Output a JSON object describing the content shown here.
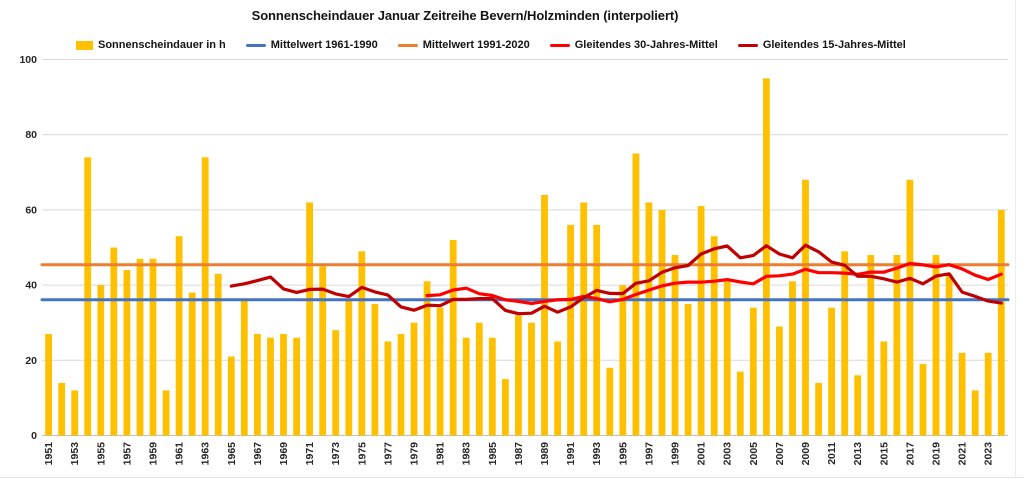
{
  "title": "Sonnenscheindauer Januar Zeitreihe Bevern/Holzminden (interpoliert)",
  "legend": [
    {
      "label": "Sonnenscheindauer in h",
      "color": "#FFC000",
      "swatch": "box"
    },
    {
      "label": "Mittelwert 1961-1990",
      "color": "#4472C4",
      "swatch": "line"
    },
    {
      "label": "Mittelwert 1991-2020",
      "color": "#ED7D31",
      "swatch": "line"
    },
    {
      "label": "Gleitendes 30-Jahres-Mittel",
      "color": "#FF0000",
      "swatch": "line"
    },
    {
      "label": "Gleitendes 15-Jahres-Mittel",
      "color": "#C00000",
      "swatch": "line"
    }
  ],
  "chart_data": {
    "type": "bar",
    "title": "Sonnenscheindauer Januar Zeitreihe Bevern/Holzminden (interpoliert)",
    "xlabel": "",
    "ylabel": "",
    "ylim": [
      0,
      100
    ],
    "yticks": [
      0,
      20,
      40,
      60,
      80,
      100
    ],
    "xticks": [
      1951,
      1953,
      1955,
      1957,
      1959,
      1961,
      1963,
      1965,
      1967,
      1969,
      1971,
      1973,
      1975,
      1977,
      1979,
      1981,
      1983,
      1985,
      1987,
      1989,
      1991,
      1993,
      1995,
      1997,
      1999,
      2001,
      2003,
      2005,
      2007,
      2009,
      2011,
      2013,
      2015,
      2017,
      2019,
      2021,
      2023
    ],
    "grid": true,
    "legend_position": "top",
    "series_label": "Sonnenscheindauer in h",
    "bar_color": "#FFC000",
    "years": [
      1951,
      1952,
      1953,
      1954,
      1955,
      1956,
      1957,
      1958,
      1959,
      1960,
      1961,
      1962,
      1963,
      1964,
      1965,
      1966,
      1967,
      1968,
      1969,
      1970,
      1971,
      1972,
      1973,
      1974,
      1975,
      1976,
      1977,
      1978,
      1979,
      1980,
      1981,
      1982,
      1983,
      1984,
      1985,
      1986,
      1987,
      1988,
      1989,
      1990,
      1991,
      1992,
      1993,
      1994,
      1995,
      1996,
      1997,
      1998,
      1999,
      2000,
      2001,
      2002,
      2003,
      2004,
      2005,
      2006,
      2007,
      2008,
      2009,
      2010,
      2011,
      2012,
      2013,
      2014,
      2015,
      2016,
      2017,
      2018,
      2019,
      2020,
      2021,
      2022,
      2023,
      2024
    ],
    "values": [
      27,
      14,
      12,
      74,
      40,
      50,
      44,
      47,
      47,
      12,
      53,
      38,
      74,
      43,
      21,
      36,
      27,
      26,
      27,
      26,
      62,
      45,
      28,
      36,
      49,
      35,
      25,
      27,
      30,
      41,
      34,
      52,
      26,
      30,
      26,
      15,
      32,
      30,
      64,
      25,
      56,
      62,
      56,
      18,
      40,
      75,
      62,
      60,
      48,
      35,
      61,
      53,
      41,
      17,
      34,
      95,
      29,
      41,
      68,
      14,
      34,
      49,
      16,
      48,
      25,
      48,
      68,
      19,
      48,
      43,
      22,
      12,
      22,
      60
    ],
    "reference_lines": [
      {
        "label": "Mittelwert 1961-1990",
        "value": 36.1,
        "color": "#4472C4"
      },
      {
        "label": "Mittelwert 1991-2020",
        "value": 45.4,
        "color": "#ED7D31"
      }
    ],
    "moving_averages": [
      {
        "label": "Gleitendes 30-Jahres-Mittel",
        "window": 30,
        "first_year": 1980,
        "color": "#FF0000"
      },
      {
        "label": "Gleitendes 15-Jahres-Mittel",
        "window": 15,
        "first_year": 1965,
        "color": "#C00000"
      }
    ]
  }
}
